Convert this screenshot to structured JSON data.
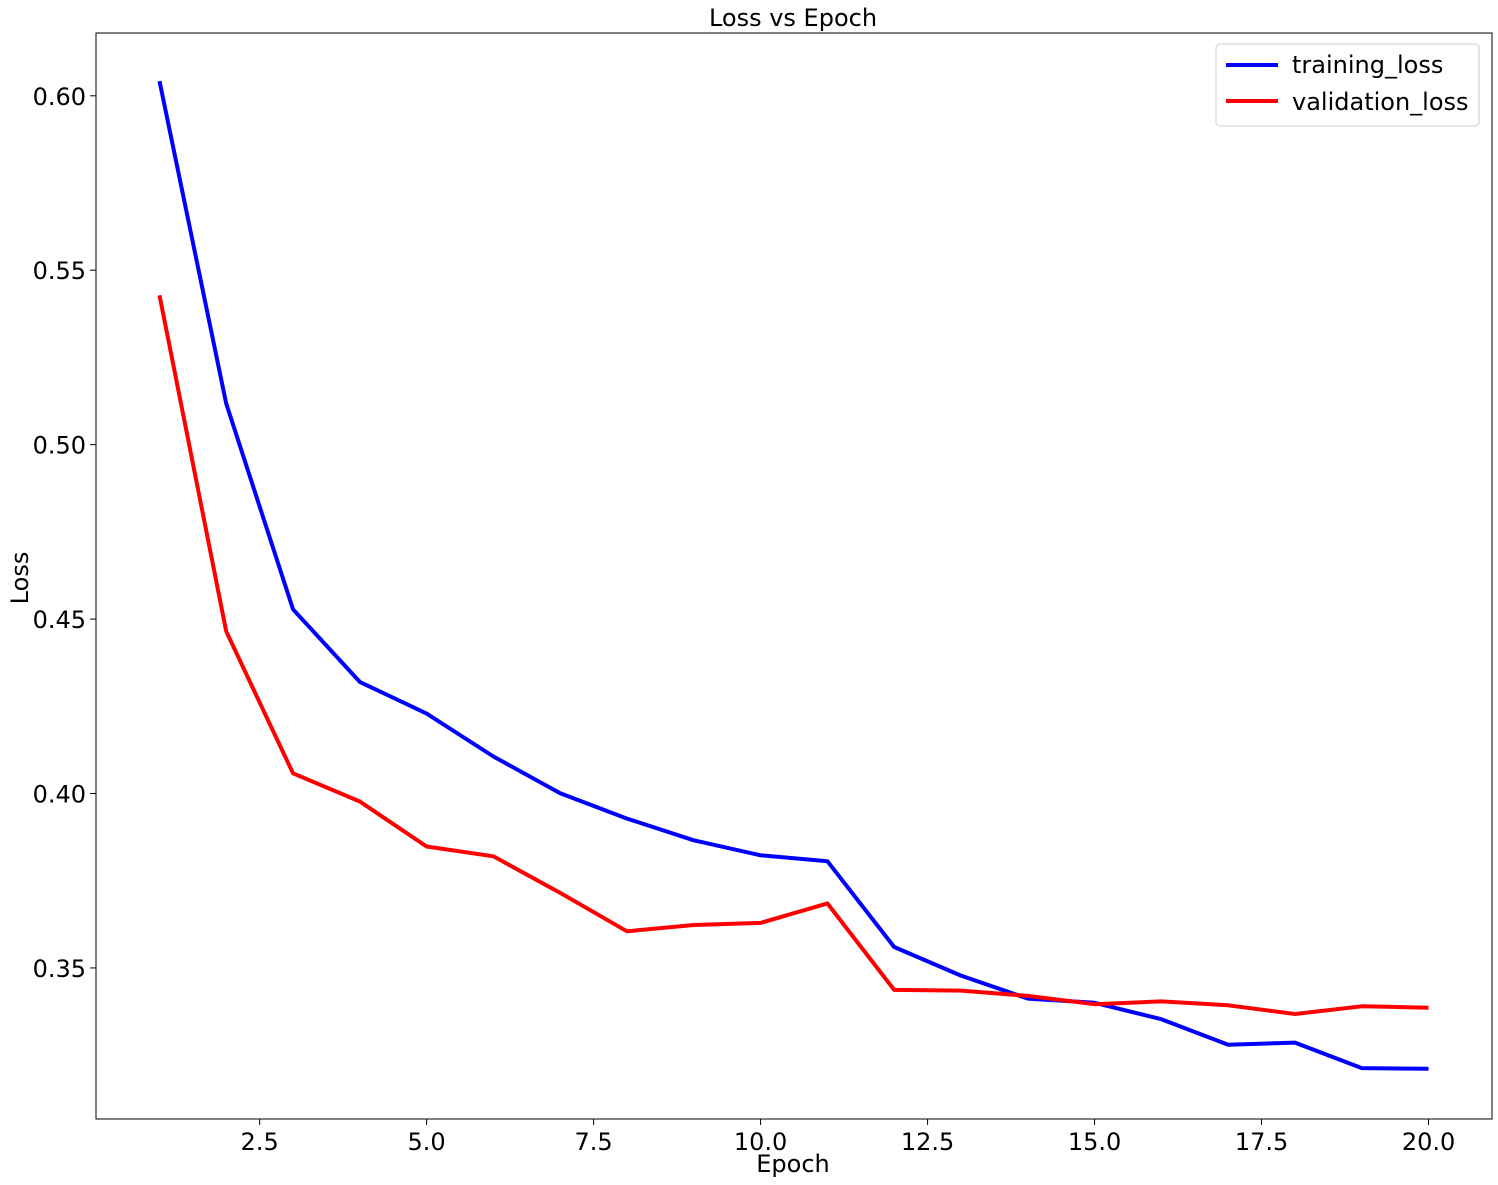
{
  "chart_data": {
    "type": "line",
    "title": "Loss vs Epoch",
    "xlabel": "Epoch",
    "ylabel": "Loss",
    "xlim": [
      0.05,
      20.95
    ],
    "ylim": [
      0.3067,
      0.618
    ],
    "xticks": [
      2.5,
      5.0,
      7.5,
      10.0,
      12.5,
      15.0,
      17.5,
      20.0
    ],
    "xtick_labels": [
      "2.5",
      "5.0",
      "7.5",
      "10.0",
      "12.5",
      "15.0",
      "17.5",
      "20.0"
    ],
    "yticks": [
      0.35,
      0.4,
      0.45,
      0.5,
      0.55,
      0.6
    ],
    "ytick_labels": [
      "0.35",
      "0.40",
      "0.45",
      "0.50",
      "0.55",
      "0.60"
    ],
    "grid": false,
    "legend_position": "top-right",
    "x": [
      1,
      2,
      3,
      4,
      5,
      6,
      7,
      8,
      9,
      10,
      11,
      12,
      13,
      14,
      15,
      16,
      17,
      18,
      19,
      20
    ],
    "series": [
      {
        "name": "training_loss",
        "color": "#0000ff",
        "values": [
          0.6042,
          0.5118,
          0.4528,
          0.432,
          0.4229,
          0.4106,
          0.4001,
          0.3928,
          0.3866,
          0.3823,
          0.3806,
          0.356,
          0.3478,
          0.3412,
          0.34,
          0.3353,
          0.328,
          0.3286,
          0.3213,
          0.3211
        ]
      },
      {
        "name": "validation_loss",
        "color": "#ff0000",
        "values": [
          0.5428,
          0.4465,
          0.4058,
          0.3977,
          0.3848,
          0.382,
          0.3715,
          0.3605,
          0.3623,
          0.3629,
          0.3685,
          0.3437,
          0.3435,
          0.342,
          0.3396,
          0.3404,
          0.3393,
          0.3368,
          0.339,
          0.3386
        ]
      }
    ]
  }
}
